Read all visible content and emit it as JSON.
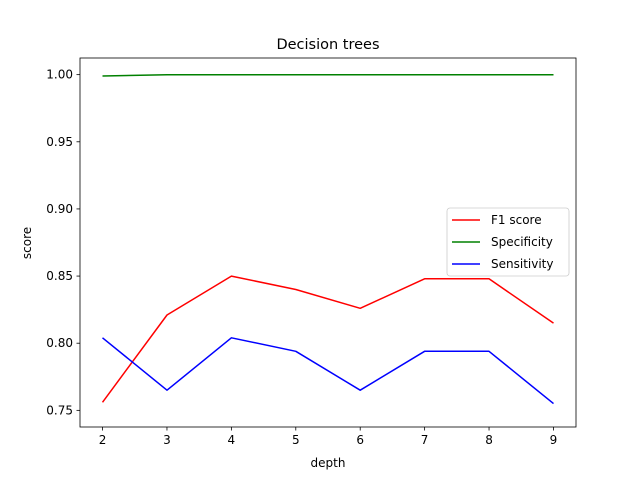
{
  "chart_data": {
    "type": "line",
    "title": "Decision trees",
    "xlabel": "depth",
    "ylabel": "score",
    "x": [
      2,
      3,
      4,
      5,
      6,
      7,
      8,
      9
    ],
    "xlim": [
      1.65,
      9.35
    ],
    "ylim": [
      0.7376,
      1.0124
    ],
    "xticks": [
      "2",
      "3",
      "4",
      "5",
      "6",
      "7",
      "8",
      "9"
    ],
    "yticks": [
      "0.75",
      "0.80",
      "0.85",
      "0.90",
      "0.95",
      "1.00"
    ],
    "grid": false,
    "legend_position": "center-right",
    "series": [
      {
        "name": "F1 score",
        "color": "#ff0000",
        "values": [
          0.756,
          0.821,
          0.85,
          0.84,
          0.826,
          0.848,
          0.848,
          0.815
        ]
      },
      {
        "name": "Specificity",
        "color": "#008000",
        "values": [
          0.999,
          1.0,
          1.0,
          1.0,
          1.0,
          1.0,
          1.0,
          1.0
        ]
      },
      {
        "name": "Sensitivity",
        "color": "#0000ff",
        "values": [
          0.804,
          0.765,
          0.804,
          0.794,
          0.765,
          0.794,
          0.794,
          0.755
        ]
      }
    ]
  }
}
